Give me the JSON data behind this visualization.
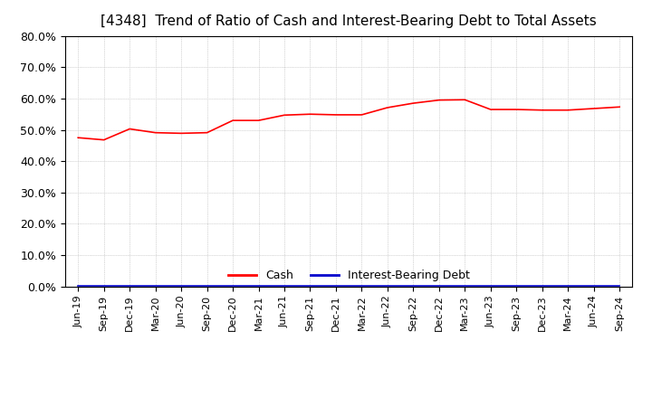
{
  "title": "[4348]  Trend of Ratio of Cash and Interest-Bearing Debt to Total Assets",
  "title_fontsize": 11,
  "title_fontweight": "normal",
  "background_color": "#ffffff",
  "plot_bg_color": "#ffffff",
  "grid_color": "#bbbbbb",
  "xlabels": [
    "Jun-19",
    "Sep-19",
    "Dec-19",
    "Mar-20",
    "Jun-20",
    "Sep-20",
    "Dec-20",
    "Mar-21",
    "Jun-21",
    "Sep-21",
    "Dec-21",
    "Mar-22",
    "Jun-22",
    "Sep-22",
    "Dec-22",
    "Mar-23",
    "Jun-23",
    "Sep-23",
    "Dec-23",
    "Mar-24",
    "Jun-24",
    "Sep-24"
  ],
  "cash": [
    0.475,
    0.468,
    0.503,
    0.491,
    0.489,
    0.491,
    0.53,
    0.53,
    0.547,
    0.55,
    0.548,
    0.548,
    0.571,
    0.585,
    0.595,
    0.596,
    0.565,
    0.565,
    0.563,
    0.563,
    0.568,
    0.573
  ],
  "interest_bearing_debt": [
    0.001,
    0.001,
    0.001,
    0.001,
    0.001,
    0.001,
    0.001,
    0.001,
    0.001,
    0.001,
    0.001,
    0.001,
    0.001,
    0.001,
    0.001,
    0.001,
    0.001,
    0.001,
    0.001,
    0.001,
    0.001,
    0.001
  ],
  "cash_color": "#ff0000",
  "debt_color": "#0000cc",
  "ylim": [
    0.0,
    0.8
  ],
  "yticks": [
    0.0,
    0.1,
    0.2,
    0.3,
    0.4,
    0.5,
    0.6,
    0.7,
    0.8
  ],
  "legend_labels": [
    "Cash",
    "Interest-Bearing Debt"
  ],
  "legend_fontsize": 9,
  "tick_fontsize": 9,
  "xlabel_fontsize": 8
}
